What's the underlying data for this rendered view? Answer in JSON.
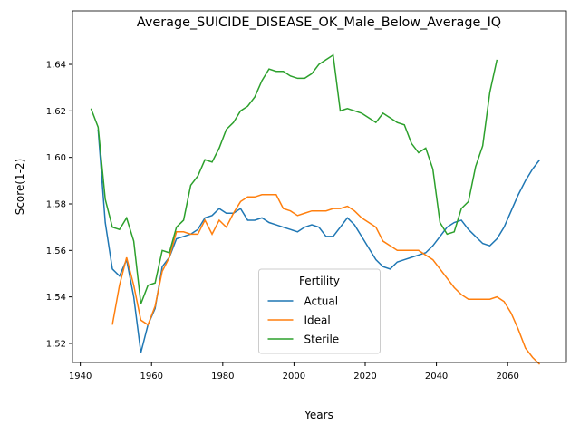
{
  "chart_data": {
    "type": "line",
    "title": "Average_SUICIDE_DISEASE_OK_Male_Below_Average_IQ",
    "xlabel": "Years",
    "ylabel": "Score(1-2)",
    "legend_title": "Fertility",
    "legend": "lower center",
    "x": [
      1943,
      1945,
      1947,
      1949,
      1951,
      1953,
      1955,
      1957,
      1959,
      1961,
      1963,
      1965,
      1967,
      1969,
      1971,
      1973,
      1975,
      1977,
      1979,
      1981,
      1983,
      1985,
      1987,
      1989,
      1991,
      1993,
      1995,
      1997,
      1999,
      2001,
      2003,
      2005,
      2007,
      2009,
      2011,
      2013,
      2015,
      2017,
      2019,
      2021,
      2023,
      2025,
      2027,
      2029,
      2031,
      2033,
      2035,
      2037,
      2039,
      2041,
      2043,
      2045,
      2047,
      2049,
      2051,
      2053,
      2055,
      2057,
      2059,
      2061,
      2063,
      2065,
      2067,
      2069
    ],
    "series": [
      {
        "name": "Actual",
        "color": "#1f77b4",
        "values": [
          null,
          1.612,
          1.572,
          1.552,
          1.549,
          1.556,
          1.54,
          1.516,
          1.528,
          1.535,
          1.553,
          1.557,
          1.565,
          1.566,
          1.567,
          1.569,
          1.574,
          1.575,
          1.578,
          1.576,
          1.576,
          1.578,
          1.573,
          1.573,
          1.574,
          1.572,
          1.571,
          1.57,
          1.569,
          1.568,
          1.57,
          1.571,
          1.57,
          1.566,
          1.566,
          1.57,
          1.574,
          1.571,
          1.566,
          1.561,
          1.556,
          1.553,
          1.552,
          1.555,
          1.556,
          1.557,
          1.558,
          1.559,
          1.562,
          1.566,
          1.57,
          1.572,
          1.573,
          1.569,
          1.566,
          1.563,
          1.562,
          1.565,
          1.57,
          1.577,
          1.584,
          1.59,
          1.595,
          1.599
        ]
      },
      {
        "name": "Ideal",
        "color": "#ff7f0e",
        "values": [
          null,
          null,
          null,
          1.528,
          1.545,
          1.557,
          1.545,
          1.53,
          1.528,
          1.536,
          1.551,
          1.557,
          1.568,
          1.568,
          1.567,
          1.567,
          1.573,
          1.567,
          1.573,
          1.57,
          1.576,
          1.581,
          1.583,
          1.583,
          1.584,
          1.584,
          1.584,
          1.578,
          1.577,
          1.575,
          1.576,
          1.577,
          1.577,
          1.577,
          1.578,
          1.578,
          1.579,
          1.577,
          1.574,
          1.572,
          1.57,
          1.564,
          1.562,
          1.56,
          1.56,
          1.56,
          1.56,
          1.558,
          1.556,
          1.552,
          1.548,
          1.544,
          1.541,
          1.539,
          1.539,
          1.539,
          1.539,
          1.54,
          1.538,
          1.533,
          1.526,
          1.518,
          1.514,
          1.511
        ]
      },
      {
        "name": "Sterile",
        "color": "#2ca02c",
        "values": [
          1.621,
          1.613,
          1.582,
          1.57,
          1.569,
          1.574,
          1.564,
          1.537,
          1.545,
          1.546,
          1.56,
          1.559,
          1.57,
          1.573,
          1.588,
          1.592,
          1.599,
          1.598,
          1.604,
          1.612,
          1.615,
          1.62,
          1.622,
          1.626,
          1.633,
          1.638,
          1.637,
          1.637,
          1.635,
          1.634,
          1.634,
          1.636,
          1.64,
          1.642,
          1.644,
          1.62,
          1.621,
          1.62,
          1.619,
          1.617,
          1.615,
          1.619,
          1.617,
          1.615,
          1.614,
          1.606,
          1.602,
          1.604,
          1.595,
          1.572,
          1.567,
          1.568,
          1.578,
          1.581,
          1.596,
          1.605,
          1.628,
          1.642,
          null,
          null,
          null,
          null,
          null,
          null
        ]
      }
    ],
    "xlim": [
      1937.8,
      2076.5
    ],
    "xticks": [
      1940,
      1960,
      1980,
      2000,
      2020,
      2040,
      2060
    ],
    "ylim": [
      1.5118,
      1.663
    ],
    "yticks": [
      1.52,
      1.54,
      1.56,
      1.58,
      {
        "value": 1.6,
        "label": "1.60"
      },
      1.62,
      1.64
    ]
  }
}
